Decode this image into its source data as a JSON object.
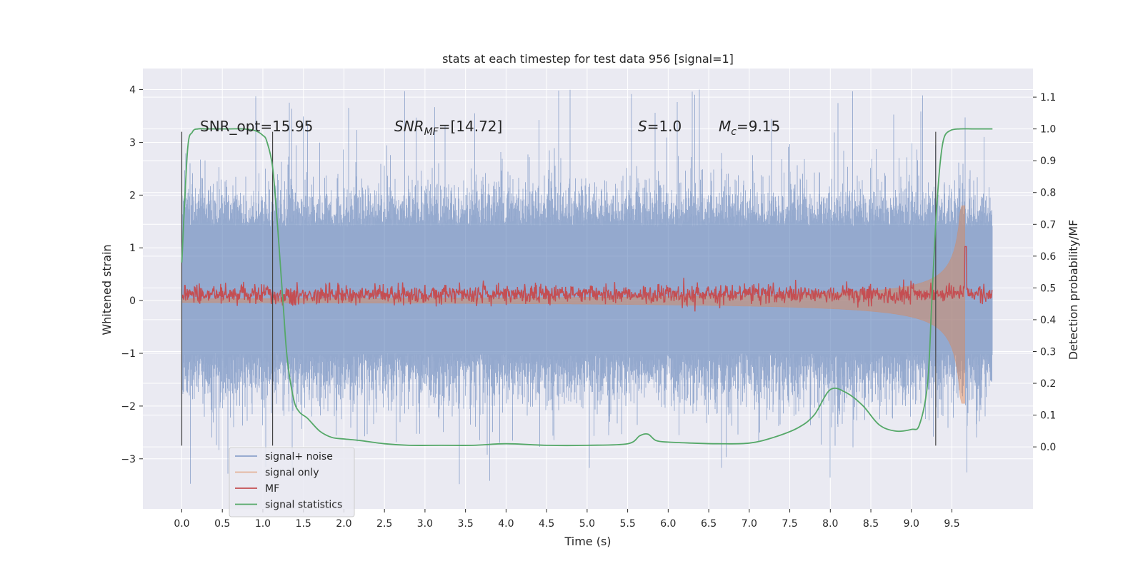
{
  "chart_data": {
    "type": "line",
    "title": "stats at each timestep for test data 956 [signal=1]",
    "xlabel": "Time (s)",
    "ylabel": "Whitened strain",
    "y2label": "Detection probability/MF",
    "xlim": [
      -0.48,
      10.5
    ],
    "ylim": [
      -3.95,
      4.4
    ],
    "y2lim": [
      -0.195,
      1.19
    ],
    "x_ticks": [
      "0.0",
      "0.5",
      "1.0",
      "1.5",
      "2.0",
      "2.5",
      "3.0",
      "3.5",
      "4.0",
      "4.5",
      "5.0",
      "5.5",
      "6.0",
      "6.5",
      "7.0",
      "7.5",
      "8.0",
      "8.5",
      "9.0",
      "9.5"
    ],
    "y_ticks": [
      "4",
      "3",
      "2",
      "1",
      "0",
      "−1",
      "−2",
      "−3"
    ],
    "y2_ticks": [
      "1.1",
      "1.0",
      "0.9",
      "0.8",
      "0.7",
      "0.6",
      "0.5",
      "0.4",
      "0.3",
      "0.2",
      "0.1",
      "0.0"
    ],
    "grid": true,
    "legend_position": "lower-left",
    "annotations": {
      "snr_opt": "SNR_opt=15.95",
      "snr_mf_main": "SNR",
      "snr_mf_sub": "MF",
      "snr_mf_value": "=[14.72]",
      "s_main": "S",
      "s_value": "=1.0",
      "mc_main": "M",
      "mc_sub": "c",
      "mc_value": "=9.15"
    },
    "vlines_x": [
      0.0,
      1.12,
      9.3
    ],
    "vlines_yrange": [
      -2.75,
      3.2
    ],
    "series": [
      {
        "name": "signal+ noise",
        "color": "#4c72b0",
        "x_range": [
          0.0,
          10.0
        ],
        "typical_band": [
          -1.0,
          1.4
        ],
        "min": -3.55,
        "max": 4.05
      },
      {
        "name": "signal only",
        "color": "#dd8452",
        "chirp_end_x": 9.67,
        "start_amplitude": 0.02,
        "peak_upper": 1.8,
        "peak_lower": -1.95
      },
      {
        "name": "MF",
        "color": "#c44e52",
        "axis": "right",
        "baseline": 0.48,
        "jitter": 0.015,
        "peak_x": 9.67,
        "peak_value": 0.63
      },
      {
        "name": "signal statistics",
        "color": "#55a868",
        "axis": "right",
        "x": [
          0.0,
          0.07,
          0.13,
          0.2,
          0.3,
          0.45,
          0.6,
          0.75,
          0.9,
          1.0,
          1.05,
          1.12,
          1.18,
          1.25,
          1.3,
          1.38,
          1.45,
          1.55,
          1.7,
          1.85,
          2.0,
          2.2,
          2.5,
          2.8,
          3.2,
          3.6,
          4.0,
          4.5,
          5.0,
          5.5,
          5.65,
          5.75,
          5.85,
          6.0,
          6.3,
          6.6,
          7.0,
          7.3,
          7.6,
          7.8,
          8.0,
          8.2,
          8.4,
          8.6,
          8.8,
          9.0,
          9.1,
          9.2,
          9.25,
          9.3,
          9.35,
          9.4,
          9.48,
          9.6,
          9.75,
          9.9,
          10.0
        ],
        "y": [
          0.58,
          0.93,
          0.99,
          1.0,
          1.0,
          1.0,
          1.0,
          1.0,
          0.995,
          0.98,
          0.96,
          0.88,
          0.7,
          0.45,
          0.28,
          0.15,
          0.11,
          0.09,
          0.05,
          0.03,
          0.025,
          0.02,
          0.01,
          0.005,
          0.005,
          0.005,
          0.01,
          0.005,
          0.005,
          0.01,
          0.035,
          0.04,
          0.02,
          0.015,
          0.012,
          0.01,
          0.012,
          0.03,
          0.06,
          0.1,
          0.18,
          0.17,
          0.13,
          0.07,
          0.05,
          0.055,
          0.07,
          0.2,
          0.45,
          0.7,
          0.88,
          0.97,
          0.995,
          1.0,
          1.0,
          1.0,
          1.0
        ]
      }
    ]
  }
}
